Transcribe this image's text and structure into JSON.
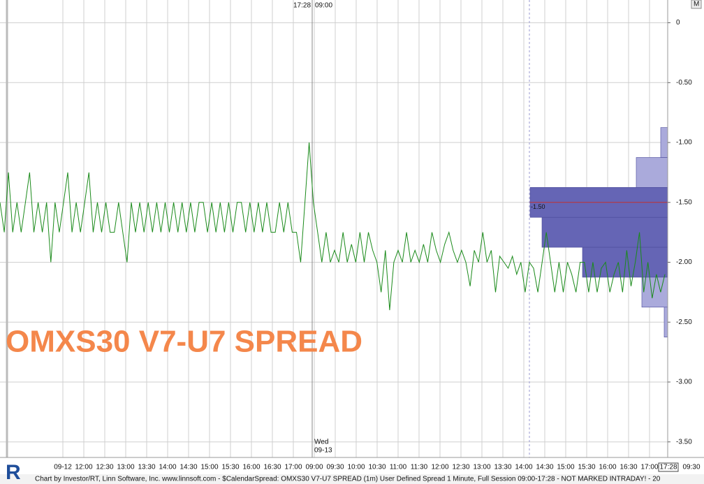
{
  "chart_data": {
    "type": "line",
    "annotation": "OMXS30 V7-U7 SPREAD",
    "footer": "Chart by Investor/RT, Linn Software, Inc. www.linnsoft.com - $CalendarSpread: OMXS30 V7-U7 SPREAD (1m) User Defined Spread 1 Minute, Full Session 09:00-17:28 - NOT MARKED INTRADAY! - 20",
    "top_labels": [
      "17:28",
      "09:00"
    ],
    "session_label": [
      "Wed",
      "09-13"
    ],
    "corner_button": "M",
    "logo": "R",
    "ylim": [
      -3.63,
      0.19
    ],
    "yticks": [
      0,
      {
        "value": -0.5,
        "label": "-0.50"
      },
      {
        "value": -1,
        "label": "-1.00"
      },
      {
        "value": -1.5,
        "label": "-1.50"
      },
      {
        "value": -2,
        "label": "-2.00"
      },
      {
        "value": -2.5,
        "label": "-2.50"
      },
      {
        "value": -3,
        "label": "-3.00"
      },
      {
        "value": -3.5,
        "label": "-3.50"
      }
    ],
    "xtick_labels": [
      "09-12",
      "12:00",
      "12:30",
      "13:00",
      "13:30",
      "14:00",
      "14:30",
      "15:00",
      "15:30",
      "16:00",
      "16:30",
      "17:00",
      "09:00",
      "09:30",
      "10:00",
      "10:30",
      "11:00",
      "11:30",
      "12:00",
      "12:30",
      "13:00",
      "13:30",
      "14:00",
      "14:30",
      "15:00",
      "15:30",
      "16:00",
      "16:30",
      "17:00",
      "17:28",
      "09:30"
    ],
    "grid": true,
    "series": [
      {
        "name": "OMXS30 V7-U7 SPREAD",
        "color": "#1a8a1a",
        "values": [
          -1.5,
          -1.75,
          -1.25,
          -1.75,
          -1.5,
          -1.75,
          -1.5,
          -1.25,
          -1.75,
          -1.5,
          -1.75,
          -1.5,
          -2.0,
          -1.5,
          -1.75,
          -1.5,
          -1.25,
          -1.75,
          -1.5,
          -1.75,
          -1.5,
          -1.25,
          -1.75,
          -1.5,
          -1.75,
          -1.5,
          -1.75,
          -1.75,
          -1.5,
          -1.75,
          -2.0,
          -1.5,
          -1.75,
          -1.5,
          -1.75,
          -1.5,
          -1.75,
          -1.5,
          -1.75,
          -1.5,
          -1.75,
          -1.5,
          -1.75,
          -1.5,
          -1.75,
          -1.5,
          -1.75,
          -1.5,
          -1.5,
          -1.75,
          -1.5,
          -1.75,
          -1.5,
          -1.75,
          -1.5,
          -1.75,
          -1.5,
          -1.5,
          -1.75,
          -1.5,
          -1.75,
          -1.5,
          -1.75,
          -1.5,
          -1.75,
          -1.75,
          -1.5,
          -1.75,
          -1.5,
          -1.75,
          -1.75,
          -2.0,
          -1.5,
          -1.0,
          -1.5,
          -1.75,
          -2.0,
          -1.75,
          -2.0,
          -1.9,
          -2.0,
          -1.75,
          -2.0,
          -1.85,
          -2.0,
          -1.75,
          -2.0,
          -1.75,
          -1.9,
          -2.0,
          -2.25,
          -1.9,
          -2.4,
          -2.0,
          -1.9,
          -2.0,
          -1.75,
          -2.0,
          -1.9,
          -2.0,
          -1.85,
          -2.0,
          -1.75,
          -1.9,
          -2.0,
          -1.85,
          -1.75,
          -1.9,
          -2.0,
          -1.9,
          -2.0,
          -2.2,
          -1.9,
          -2.0,
          -1.75,
          -2.0,
          -1.9,
          -2.25,
          -1.95,
          -2.0,
          -2.05,
          -1.95,
          -2.1,
          -2.0,
          -2.25,
          -2.0,
          -2.05,
          -2.25,
          -2.0,
          -1.75,
          -2.0,
          -2.25,
          -2.0,
          -2.25,
          -2.0,
          -2.1,
          -2.25,
          -2.0,
          -2.0,
          -2.25,
          -2.0,
          -2.25,
          -2.05,
          -2.0,
          -2.25,
          -2.1,
          -2.0,
          -2.25,
          -1.9,
          -2.2,
          -2.0,
          -1.75,
          -2.25,
          -2.0,
          -2.3,
          -2.1,
          -2.25,
          -2.1
        ]
      }
    ],
    "profile": {
      "levels": [
        -1.0,
        -1.25,
        -1.5,
        -1.75,
        -2.0,
        -2.25,
        -2.5
      ],
      "volumes": [
        10,
        45,
        197,
        180,
        122,
        37,
        5
      ],
      "colors": [
        "#aaaadb",
        "#aaaadb",
        "#6565b5",
        "#6565b5",
        "#6565b5",
        "#aaaadb",
        "#aaaadb"
      ]
    },
    "poc": {
      "value": -1.5,
      "label": "-1.50",
      "color": "#c03030"
    }
  }
}
